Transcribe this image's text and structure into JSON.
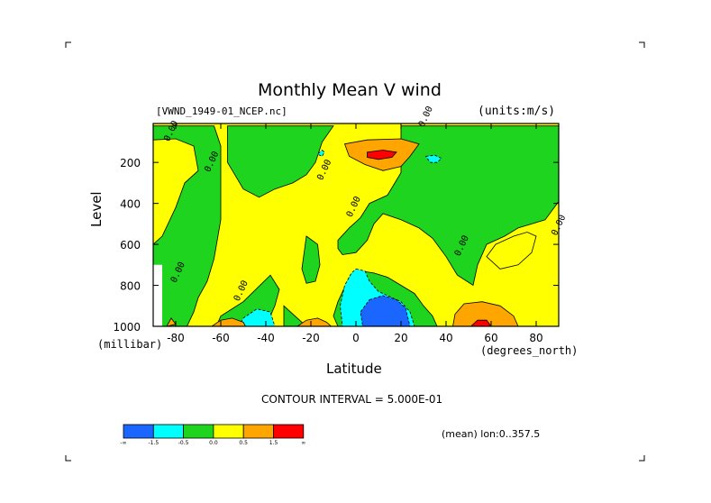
{
  "title": "Monthly Mean V wind",
  "dataset": "[VWND_1949-01_NCEP.nc]",
  "units": "(units:m/s)",
  "contour_interval": "CONTOUR INTERVAL = 5.000E-01",
  "averaging": "(mean) lon:0..357.5",
  "colors": {
    "lt_m2": "#1a66ff",
    "m2_m1": "#00ffff",
    "m1_0": "#1ed41e",
    "0_1": "#ffff00",
    "1_2": "#ffa500",
    "gt_2": "#ff0000"
  },
  "colorbar": {
    "colors": [
      "#1a66ff",
      "#00ffff",
      "#1ed41e",
      "#ffff00",
      "#ffa500",
      "#ff0000"
    ],
    "tick_labels": [
      "-∞",
      "-1.5",
      "-0.5",
      "0.0",
      "0.5",
      "1.5",
      "∞"
    ]
  },
  "chart_data": {
    "type": "heatmap",
    "title": "Monthly Mean V wind",
    "xlabel": "Latitude",
    "xunit": "(degrees_north)",
    "ylabel": "Level",
    "yunit": "(millibar)",
    "xlim": [
      -90,
      90
    ],
    "ylim": [
      1000,
      10
    ],
    "x_ticks": [
      -80,
      -60,
      -40,
      -20,
      0,
      20,
      40,
      60,
      80
    ],
    "x_tick_labels": [
      "-80",
      "-60",
      "-40",
      "-20",
      "0",
      "20",
      "40",
      "60",
      "80"
    ],
    "y_ticks": [
      200,
      400,
      600,
      800,
      1000
    ],
    "y_tick_labels": [
      "200",
      "400",
      "600",
      "800",
      "1000"
    ],
    "contour_labels": [
      {
        "text": "0.00",
        "lat": -83,
        "lev": 100
      },
      {
        "text": "0.00",
        "lat": -65,
        "lev": 250
      },
      {
        "text": "0.00",
        "lat": -15,
        "lev": 290
      },
      {
        "text": "0.00",
        "lat": -2,
        "lev": 470
      },
      {
        "text": "0.00",
        "lat": 46,
        "lev": 660
      },
      {
        "text": "0.00",
        "lat": 30,
        "lev": 30
      },
      {
        "text": "0.00",
        "lat": -80,
        "lev": 790
      },
      {
        "text": "0.00",
        "lat": -52,
        "lev": 880
      },
      {
        "text": "0.00",
        "lat": 89,
        "lev": 560
      }
    ],
    "regions": [
      {
        "band": "m1_0",
        "poly": [
          [
            -90,
            22
          ],
          [
            -63,
            22
          ],
          [
            -60,
            120
          ],
          [
            -60,
            330
          ],
          [
            -60,
            480
          ],
          [
            -63,
            670
          ],
          [
            -66,
            780
          ],
          [
            -70,
            860
          ],
          [
            -72,
            930
          ],
          [
            -75,
            1000
          ],
          [
            -90,
            1000
          ]
        ]
      },
      {
        "band": "0_1",
        "poly": [
          [
            -90,
            90
          ],
          [
            -80,
            85
          ],
          [
            -72,
            120
          ],
          [
            -70,
            240
          ],
          [
            -76,
            300
          ],
          [
            -80,
            420
          ],
          [
            -86,
            560
          ],
          [
            -90,
            600
          ]
        ]
      },
      {
        "band": "m1_0",
        "poly": [
          [
            -57,
            22
          ],
          [
            -10,
            22
          ],
          [
            -15,
            100
          ],
          [
            -18,
            200
          ],
          [
            -22,
            260
          ],
          [
            -28,
            300
          ],
          [
            -36,
            330
          ],
          [
            -43,
            370
          ],
          [
            -50,
            330
          ],
          [
            -57,
            200
          ]
        ]
      },
      {
        "band": "m1_0",
        "poly": [
          [
            -22,
            560
          ],
          [
            -17,
            600
          ],
          [
            -16,
            700
          ],
          [
            -18,
            780
          ],
          [
            -22,
            790
          ],
          [
            -24,
            720
          ]
        ]
      },
      {
        "band": "m1_0",
        "poly": [
          [
            -38,
            750
          ],
          [
            -34,
            820
          ],
          [
            -36,
            900
          ],
          [
            -40,
            1000
          ],
          [
            -62,
            1000
          ],
          [
            -60,
            950
          ],
          [
            -50,
            880
          ]
        ]
      },
      {
        "band": "m1_0",
        "poly": [
          [
            -32,
            900
          ],
          [
            -28,
            940
          ],
          [
            -22,
            1000
          ],
          [
            -32,
            1000
          ]
        ]
      },
      {
        "band": "m2_m1",
        "poly": [
          [
            -52,
            1000
          ],
          [
            -50,
            960
          ],
          [
            -44,
            915
          ],
          [
            -38,
            930
          ],
          [
            -36,
            1000
          ]
        ]
      },
      {
        "band": "m1_0",
        "poly": [
          [
            20,
            22
          ],
          [
            90,
            22
          ],
          [
            90,
            390
          ],
          [
            84,
            480
          ],
          [
            78,
            500
          ],
          [
            72,
            520
          ],
          [
            66,
            560
          ],
          [
            58,
            600
          ],
          [
            54,
            700
          ],
          [
            52,
            800
          ],
          [
            45,
            750
          ],
          [
            40,
            660
          ],
          [
            34,
            570
          ],
          [
            28,
            520
          ],
          [
            20,
            480
          ],
          [
            12,
            450
          ],
          [
            8,
            500
          ],
          [
            5,
            580
          ],
          [
            0,
            640
          ],
          [
            -6,
            650
          ],
          [
            -8,
            620
          ],
          [
            -8,
            580
          ],
          [
            -3,
            520
          ],
          [
            2,
            470
          ],
          [
            6,
            400
          ],
          [
            14,
            360
          ],
          [
            20,
            250
          ],
          [
            20,
            100
          ]
        ]
      },
      {
        "band": "0_1",
        "poly": [
          [
            62,
            600
          ],
          [
            70,
            560
          ],
          [
            76,
            540
          ],
          [
            80,
            560
          ],
          [
            78,
            640
          ],
          [
            72,
            700
          ],
          [
            64,
            720
          ],
          [
            58,
            660
          ]
        ]
      },
      {
        "band": "m2_m1",
        "poly": [
          [
            -15,
            140
          ],
          [
            -14,
            150
          ],
          [
            -15,
            170
          ],
          [
            -17,
            160
          ]
        ]
      },
      {
        "band": "m2_m1",
        "poly": [
          [
            31,
            170
          ],
          [
            35,
            165
          ],
          [
            38,
            180
          ],
          [
            36,
            200
          ],
          [
            33,
            200
          ]
        ]
      },
      {
        "band": "m1_0",
        "poly": [
          [
            8,
            740
          ],
          [
            14,
            760
          ],
          [
            20,
            800
          ],
          [
            26,
            840
          ],
          [
            30,
            900
          ],
          [
            34,
            950
          ],
          [
            36,
            1000
          ],
          [
            -8,
            1000
          ],
          [
            -10,
            950
          ],
          [
            -8,
            880
          ],
          [
            -3,
            760
          ],
          [
            2,
            730
          ]
        ]
      },
      {
        "band": "m2_m1",
        "poly": [
          [
            0,
            720
          ],
          [
            4,
            730
          ],
          [
            6,
            780
          ],
          [
            10,
            830
          ],
          [
            14,
            850
          ],
          [
            20,
            880
          ],
          [
            24,
            930
          ],
          [
            26,
            1000
          ],
          [
            -6,
            1000
          ],
          [
            -7,
            900
          ],
          [
            -5,
            800
          ],
          [
            -2,
            740
          ]
        ]
      },
      {
        "band": "lt_m2",
        "poly": [
          [
            6,
            870
          ],
          [
            12,
            850
          ],
          [
            18,
            870
          ],
          [
            22,
            910
          ],
          [
            24,
            1000
          ],
          [
            3,
            1000
          ],
          [
            2,
            930
          ]
        ]
      },
      {
        "band": "1_2",
        "poly": [
          [
            -5,
            110
          ],
          [
            5,
            90
          ],
          [
            20,
            85
          ],
          [
            28,
            110
          ],
          [
            24,
            170
          ],
          [
            20,
            220
          ],
          [
            12,
            240
          ],
          [
            4,
            210
          ],
          [
            -3,
            170
          ]
        ]
      },
      {
        "band": "gt_2",
        "poly": [
          [
            5,
            150
          ],
          [
            12,
            140
          ],
          [
            18,
            150
          ],
          [
            16,
            175
          ],
          [
            10,
            185
          ],
          [
            5,
            175
          ]
        ]
      },
      {
        "band": "1_2",
        "poly": [
          [
            43,
            1000
          ],
          [
            44,
            940
          ],
          [
            48,
            890
          ],
          [
            56,
            880
          ],
          [
            64,
            900
          ],
          [
            70,
            950
          ],
          [
            72,
            1000
          ]
        ]
      },
      {
        "band": "gt_2",
        "poly": [
          [
            51,
            1000
          ],
          [
            54,
            970
          ],
          [
            58,
            970
          ],
          [
            60,
            1000
          ]
        ]
      },
      {
        "band": "1_2",
        "poly": [
          [
            -64,
            1000
          ],
          [
            -60,
            970
          ],
          [
            -55,
            960
          ],
          [
            -50,
            980
          ],
          [
            -49,
            1000
          ]
        ]
      },
      {
        "band": "1_2",
        "poly": [
          [
            -26,
            1000
          ],
          [
            -22,
            970
          ],
          [
            -17,
            960
          ],
          [
            -13,
            980
          ],
          [
            -11,
            1000
          ]
        ]
      },
      {
        "band": "1_2",
        "poly": [
          [
            -84,
            1000
          ],
          [
            -82,
            960
          ],
          [
            -80,
            990
          ]
        ]
      }
    ],
    "missing_region": [
      [
        -90,
        700
      ],
      [
        -86,
        700
      ],
      [
        -86,
        1000
      ],
      [
        -90,
        1000
      ]
    ]
  }
}
